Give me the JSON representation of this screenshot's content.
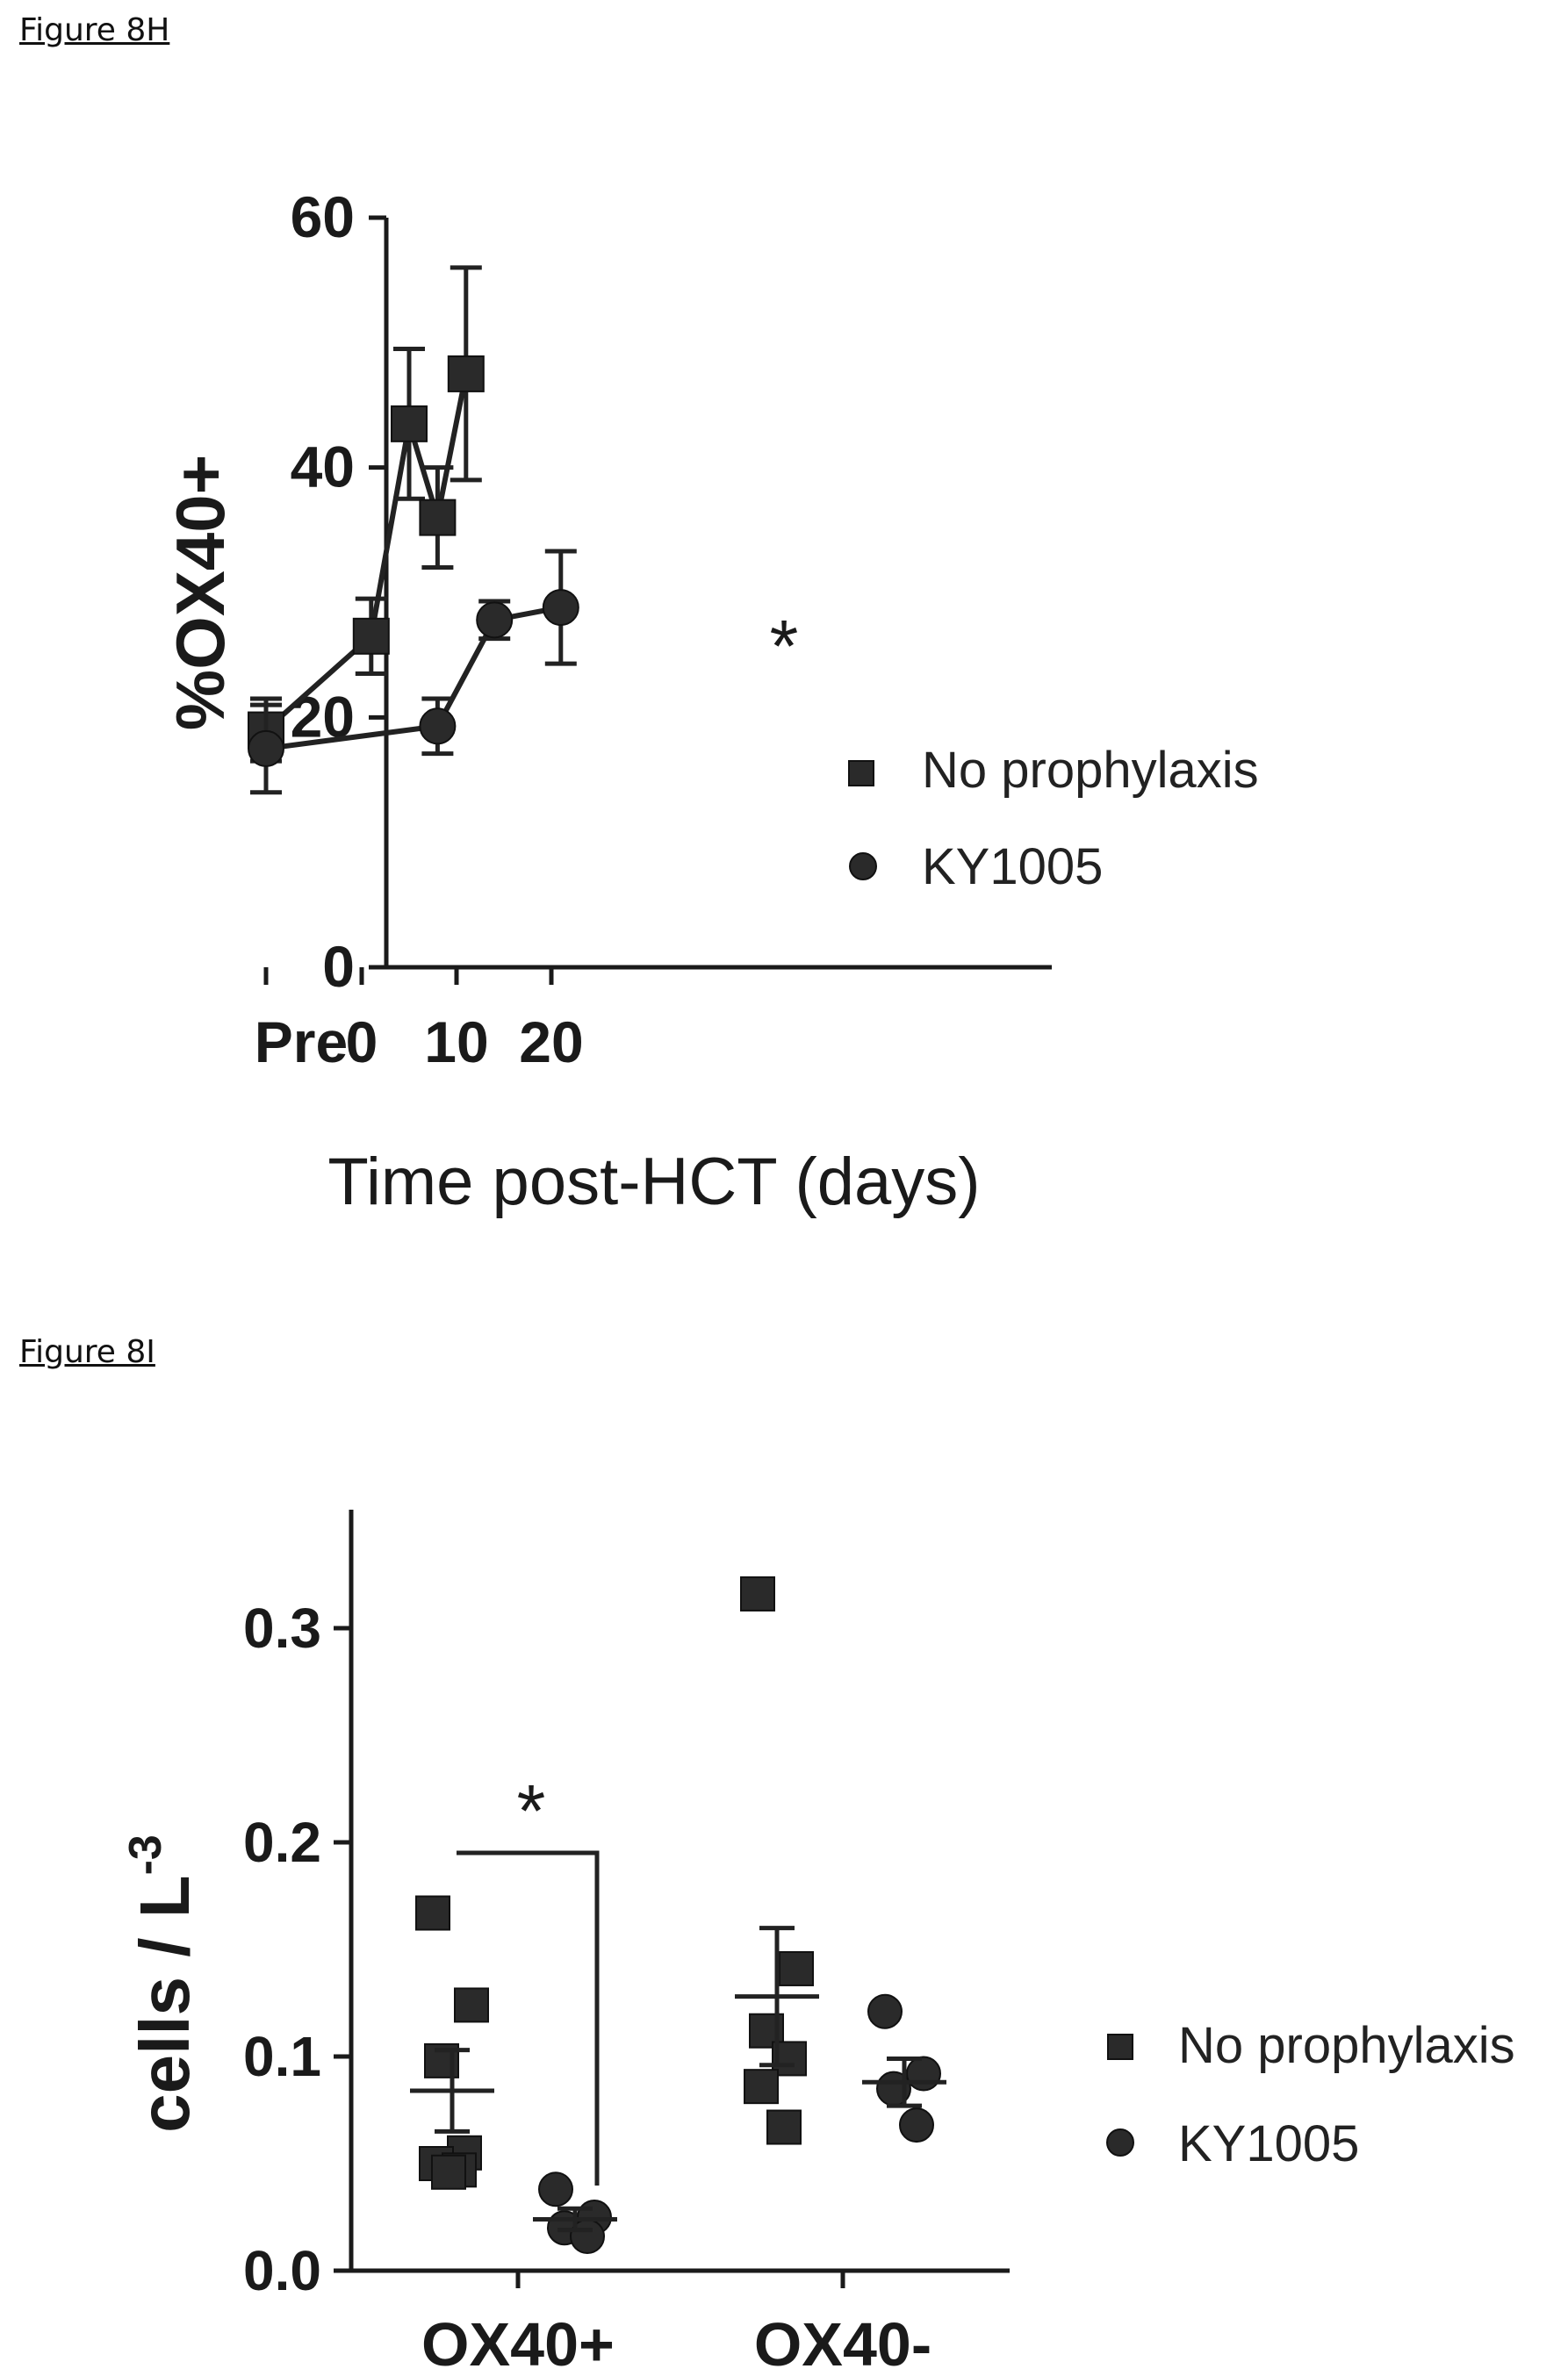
{
  "chart_data": [
    {
      "caption": "Figure 8H",
      "type": "line",
      "ylabel": "%OX40+",
      "xlabel": "Time post-HCT (days)",
      "ylim": [
        0,
        60
      ],
      "yticks": [
        "0",
        "20",
        "40",
        "60"
      ],
      "xticks": [
        "Pre",
        "0",
        "10",
        "20"
      ],
      "annotations": [
        {
          "text": "*",
          "x": 9.5,
          "y": 26.5
        }
      ],
      "series": [
        {
          "name": "No prophylaxis",
          "marker": "square",
          "points": [
            {
              "x": "Pre",
              "y": 19.0,
              "err": 2.5
            },
            {
              "x": 1,
              "y": 26.5,
              "err": 3.0
            },
            {
              "x": 5,
              "y": 43.5,
              "err": 6.0
            },
            {
              "x": 8,
              "y": 36.0,
              "err": 4.0
            },
            {
              "x": 11,
              "y": 47.5,
              "err": 8.5
            }
          ]
        },
        {
          "name": "KY1005",
          "marker": "circle",
          "points": [
            {
              "x": "Pre",
              "y": 17.5,
              "err": 3.5
            },
            {
              "x": 8,
              "y": 19.3,
              "err": 2.2
            },
            {
              "x": 14,
              "y": 27.8,
              "err": 1.5
            },
            {
              "x": 21,
              "y": 28.8,
              "err": 4.5
            }
          ]
        }
      ]
    },
    {
      "caption": "Figure 8I",
      "type": "scatter",
      "ylabel": "cells / L",
      "ylabel_sup": "-3",
      "categories": [
        "OX40+",
        "OX40-"
      ],
      "ylim": [
        0,
        0.35
      ],
      "yticks": [
        "0.0",
        "0.1",
        "0.2",
        "0.3"
      ],
      "annotations": [
        {
          "text": "*",
          "between": [
            "OX40+ No prophylaxis",
            "OX40+ KY1005"
          ]
        }
      ],
      "series": [
        {
          "name": "No prophylaxis",
          "marker": "square",
          "groups": [
            {
              "category": "OX40+",
              "values": [
                0.167,
                0.124,
                0.098,
                0.055,
                0.05,
                0.047,
                0.046
              ],
              "mean": 0.084,
              "sem": 0.019
            },
            {
              "category": "OX40-",
              "values": [
                0.316,
                0.141,
                0.112,
                0.099,
                0.086,
                0.067
              ],
              "mean": 0.128,
              "sem": 0.032
            }
          ]
        },
        {
          "name": "KY1005",
          "marker": "circle",
          "groups": [
            {
              "category": "OX40+",
              "values": [
                0.038,
                0.025,
                0.02,
                0.016
              ],
              "mean": 0.024,
              "sem": 0.005
            },
            {
              "category": "OX40-",
              "values": [
                0.121,
                0.092,
                0.085,
                0.068
              ],
              "mean": 0.088,
              "sem": 0.011
            }
          ]
        }
      ]
    }
  ]
}
